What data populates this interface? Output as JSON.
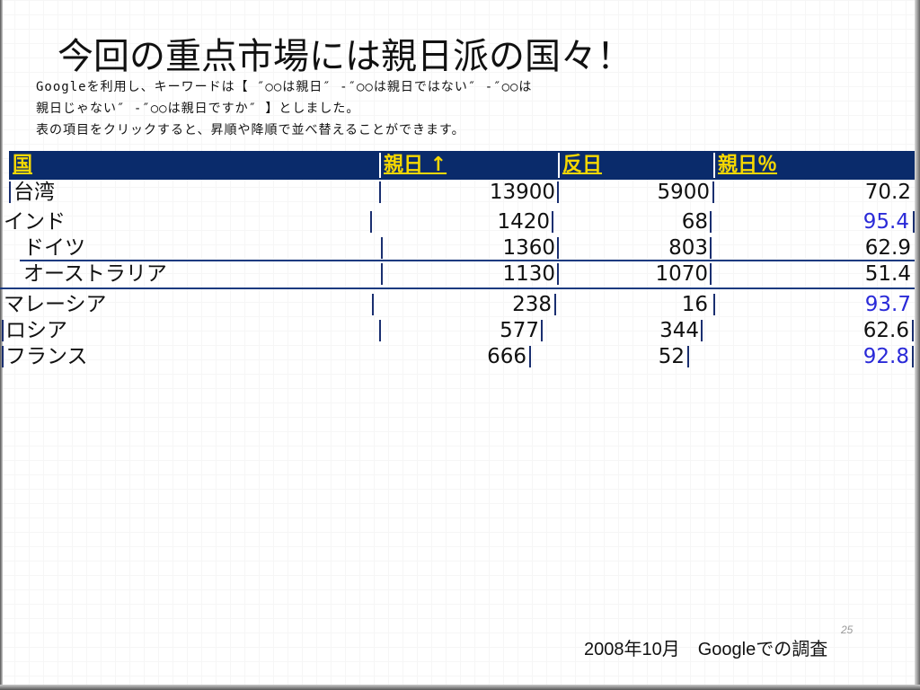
{
  "slide": {
    "title": "今回の重点市場には親日派の国々！",
    "description": [
      "Googleを利用し、キーワードは【 ″○○は親日″ -″○○は親日ではない″ -″○○は",
      "親日じゃない″ -″○○は親日ですか″ 】としました。",
      "表の項目をクリックすると、昇順や降順で並べ替えることができます。"
    ],
    "caption": "2008年10月　Googleでの調査",
    "page_number": "25"
  },
  "table": {
    "headers": [
      "国",
      "親日 ↑",
      "反日",
      "親日％"
    ],
    "rows": [
      {
        "country": "台湾",
        "pro": "13900",
        "anti": "5900",
        "pct": "70.2",
        "highlight": false
      },
      {
        "country": "インド",
        "pro": "1420",
        "anti": "68",
        "pct": "95.4",
        "highlight": true
      },
      {
        "country": "ドイツ",
        "pro": "1360",
        "anti": "803",
        "pct": "62.9",
        "highlight": false
      },
      {
        "country": "オーストラリア",
        "pro": "1130",
        "anti": "1070",
        "pct": "51.4",
        "highlight": false
      },
      {
        "country": "マレーシア",
        "pro": "238",
        "anti": "16",
        "pct": "93.7",
        "highlight": true
      },
      {
        "country": "ロシア",
        "pro": "577",
        "anti": "344",
        "pct": "62.6",
        "highlight": false
      },
      {
        "country": "フランス",
        "pro": "666",
        "anti": "52",
        "pct": "92.8",
        "highlight": true
      }
    ]
  },
  "colors": {
    "header_bg": "#0a2b6b",
    "header_text": "#f6d800",
    "highlight_text": "#2a2ad8"
  }
}
